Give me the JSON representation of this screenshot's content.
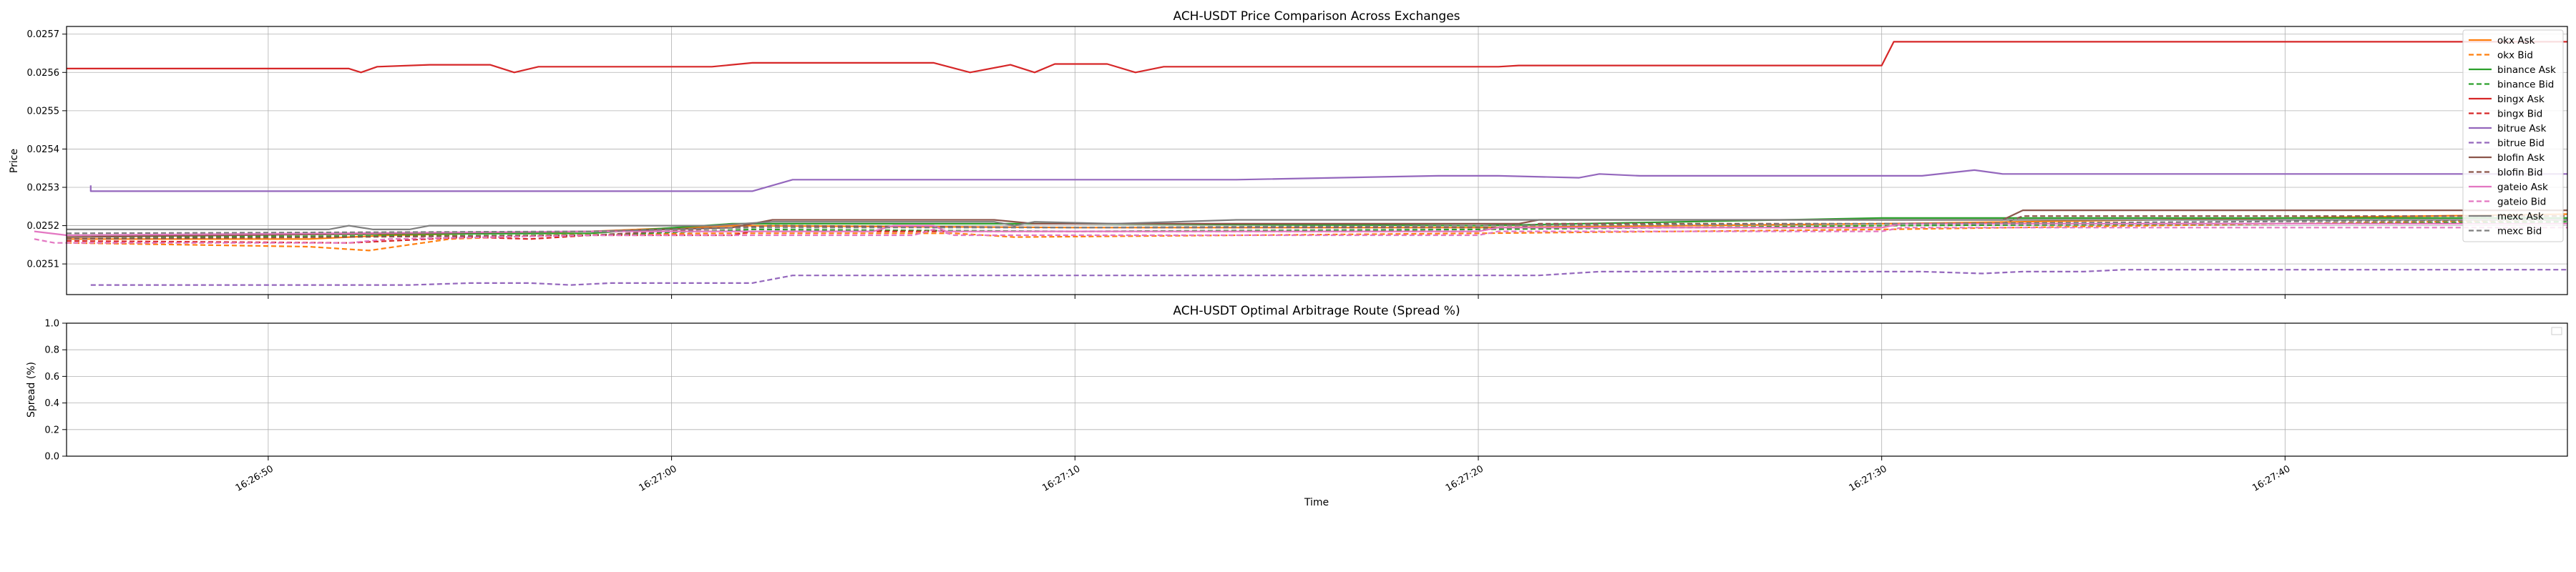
{
  "chart_data": [
    {
      "type": "line",
      "title": "ACH-USDT Price Comparison Across Exchanges",
      "xlabel": "",
      "ylabel": "Price",
      "ylim": [
        0.02502,
        0.02572
      ],
      "xlim": [
        "16:26:45",
        "16:27:47"
      ],
      "grid": true,
      "legend": "right",
      "y_ticks": [
        "0.0251",
        "0.0252",
        "0.0253",
        "0.0254",
        "0.0255",
        "0.0256",
        "0.0257"
      ],
      "y_tick_values": [
        0.0251,
        0.0252,
        0.0253,
        0.0254,
        0.0255,
        0.0256,
        0.0257
      ],
      "x_ticks": [
        "16:26:50",
        "16:27:00",
        "16:27:10",
        "16:27:20",
        "16:27:30",
        "16:27:40"
      ],
      "series": [
        {
          "name": "okx Ask",
          "color": "#ff7f0e",
          "dashed": false,
          "points": [
            [
              "16:26:45.0",
              0.025165
            ],
            [
              "16:26:51.0",
              0.025165
            ],
            [
              "16:26:53.0",
              0.025175
            ],
            [
              "16:26:58.0",
              0.025185
            ],
            [
              "16:27:01.5",
              0.0252
            ],
            [
              "16:27:10.0",
              0.025195
            ],
            [
              "16:27:20.0",
              0.025195
            ],
            [
              "16:27:30.0",
              0.025205
            ],
            [
              "16:27:40.0",
              0.02522
            ],
            [
              "16:27:47.0",
              0.02523
            ]
          ]
        },
        {
          "name": "okx Bid",
          "color": "#ff7f0e",
          "dashed": true,
          "points": [
            [
              "16:26:45.0",
              0.025155
            ],
            [
              "16:26:51.0",
              0.025145
            ],
            [
              "16:26:52.5",
              0.025135
            ],
            [
              "16:26:54.5",
              0.025165
            ],
            [
              "16:26:57.0",
              0.025175
            ],
            [
              "16:27:01.0",
              0.02518
            ],
            [
              "16:27:07.0",
              0.02518
            ],
            [
              "16:27:08.5",
              0.02517
            ],
            [
              "16:27:20.0",
              0.02518
            ],
            [
              "16:27:30.0",
              0.02519
            ],
            [
              "16:27:40.0",
              0.025205
            ],
            [
              "16:27:47.0",
              0.025215
            ]
          ]
        },
        {
          "name": "binance Ask",
          "color": "#2ca02c",
          "dashed": false,
          "points": [
            [
              "16:26:45.0",
              0.025175
            ],
            [
              "16:26:58.0",
              0.02518
            ],
            [
              "16:27:01.5",
              0.025205
            ],
            [
              "16:27:10.0",
              0.025205
            ],
            [
              "16:27:20.0",
              0.0252
            ],
            [
              "16:27:30.0",
              0.02522
            ],
            [
              "16:27:40.0",
              0.02522
            ],
            [
              "16:27:47.0",
              0.02522
            ]
          ]
        },
        {
          "name": "binance Bid",
          "color": "#2ca02c",
          "dashed": true,
          "points": [
            [
              "16:26:45.0",
              0.02517
            ],
            [
              "16:26:58.0",
              0.025175
            ],
            [
              "16:27:02.0",
              0.02519
            ],
            [
              "16:27:10.0",
              0.025185
            ],
            [
              "16:27:20.0",
              0.02519
            ],
            [
              "16:27:30.0",
              0.0252
            ],
            [
              "16:27:40.0",
              0.025205
            ],
            [
              "16:27:47.0",
              0.02521
            ]
          ]
        },
        {
          "name": "bingx Ask",
          "color": "#d62728",
          "dashed": false,
          "points": [
            [
              "16:26:45.0",
              0.02561
            ],
            [
              "16:26:52.0",
              0.02561
            ],
            [
              "16:26:52.3",
              0.0256
            ],
            [
              "16:26:52.7",
              0.025615
            ],
            [
              "16:26:54.0",
              0.02562
            ],
            [
              "16:26:55.5",
              0.02562
            ],
            [
              "16:26:56.1",
              0.0256
            ],
            [
              "16:26:56.7",
              0.025615
            ],
            [
              "16:27:01.0",
              0.025615
            ],
            [
              "16:27:02.0",
              0.025625
            ],
            [
              "16:27:06.5",
              0.025625
            ],
            [
              "16:27:07.4",
              0.0256
            ],
            [
              "16:27:08.4",
              0.02562
            ],
            [
              "16:27:09.0",
              0.0256
            ],
            [
              "16:27:09.5",
              0.025622
            ],
            [
              "16:27:10.8",
              0.025622
            ],
            [
              "16:27:11.5",
              0.0256
            ],
            [
              "16:27:12.2",
              0.025615
            ],
            [
              "16:27:20.5",
              0.025615
            ],
            [
              "16:27:21.0",
              0.025618
            ],
            [
              "16:27:30.0",
              0.025618
            ],
            [
              "16:27:30.3",
              0.02568
            ],
            [
              "16:27:47.0",
              0.02568
            ]
          ]
        },
        {
          "name": "bingx Bid",
          "color": "#d62728",
          "dashed": true,
          "points": [
            [
              "16:26:45.0",
              0.02516
            ],
            [
              "16:26:52.0",
              0.025155
            ],
            [
              "16:26:55.0",
              0.02517
            ],
            [
              "16:26:56.5",
              0.025165
            ],
            [
              "16:26:58.0",
              0.025175
            ],
            [
              "16:27:01.5",
              0.025175
            ],
            [
              "16:27:02.0",
              0.025185
            ],
            [
              "16:27:20.0",
              0.025185
            ],
            [
              "16:27:20.5",
              0.025195
            ],
            [
              "16:27:30.0",
              0.025195
            ],
            [
              "16:27:30.5",
              0.025205
            ],
            [
              "16:27:47.0",
              0.025205
            ]
          ]
        },
        {
          "name": "bitrue Ask",
          "color": "#9467bd",
          "dashed": false,
          "points": [
            [
              "16:26:45.6",
              0.025305
            ],
            [
              "16:26:45.6",
              0.02529
            ],
            [
              "16:27:02.0",
              0.02529
            ],
            [
              "16:27:03.0",
              0.02532
            ],
            [
              "16:27:14.0",
              0.02532
            ],
            [
              "16:27:19.0",
              0.02533
            ],
            [
              "16:27:20.5",
              0.02533
            ],
            [
              "16:27:22.5",
              0.025325
            ],
            [
              "16:27:23.0",
              0.025335
            ],
            [
              "16:27:24.0",
              0.02533
            ],
            [
              "16:27:31.0",
              0.02533
            ],
            [
              "16:27:32.3",
              0.025345
            ],
            [
              "16:27:33.0",
              0.025335
            ],
            [
              "16:27:47.0",
              0.025335
            ]
          ]
        },
        {
          "name": "bitrue Bid",
          "color": "#9467bd",
          "dashed": true,
          "points": [
            [
              "16:26:45.6",
              0.025045
            ],
            [
              "16:26:53.5",
              0.025045
            ],
            [
              "16:26:55.0",
              0.02505
            ],
            [
              "16:26:56.5",
              0.02505
            ],
            [
              "16:26:57.5",
              0.025045
            ],
            [
              "16:26:58.5",
              0.02505
            ],
            [
              "16:27:02.0",
              0.02505
            ],
            [
              "16:27:03.0",
              0.02507
            ],
            [
              "16:27:21.5",
              0.02507
            ],
            [
              "16:27:23.0",
              0.02508
            ],
            [
              "16:27:31.0",
              0.02508
            ],
            [
              "16:27:32.5",
              0.025075
            ],
            [
              "16:27:33.5",
              0.02508
            ],
            [
              "16:27:35.0",
              0.02508
            ],
            [
              "16:27:36.0",
              0.025085
            ],
            [
              "16:27:47.0",
              0.025085
            ]
          ]
        },
        {
          "name": "blofin Ask",
          "color": "#8c564b",
          "dashed": false,
          "points": [
            [
              "16:26:45.0",
              0.02517
            ],
            [
              "16:26:58.0",
              0.025185
            ],
            [
              "16:27:01.5",
              0.025195
            ],
            [
              "16:27:02.5",
              0.025215
            ],
            [
              "16:27:08.0",
              0.025215
            ],
            [
              "16:27:09.0",
              0.025205
            ],
            [
              "16:27:21.0",
              0.025205
            ],
            [
              "16:27:21.5",
              0.025215
            ],
            [
              "16:27:33.0",
              0.025215
            ],
            [
              "16:27:33.5",
              0.02524
            ],
            [
              "16:27:47.0",
              0.02524
            ]
          ]
        },
        {
          "name": "blofin Bid",
          "color": "#8c564b",
          "dashed": true,
          "points": [
            [
              "16:26:45.0",
              0.025165
            ],
            [
              "16:26:58.0",
              0.025175
            ],
            [
              "16:27:02.5",
              0.0252
            ],
            [
              "16:27:10.0",
              0.025195
            ],
            [
              "16:27:21.0",
              0.025195
            ],
            [
              "16:27:21.5",
              0.025205
            ],
            [
              "16:27:33.0",
              0.025205
            ],
            [
              "16:27:33.5",
              0.025225
            ],
            [
              "16:27:47.0",
              0.025225
            ]
          ]
        },
        {
          "name": "gateio Ask",
          "color": "#e377c2",
          "dashed": false,
          "points": [
            [
              "16:26:44.2",
              0.025185
            ],
            [
              "16:26:45.0",
              0.025175
            ],
            [
              "16:26:58.0",
              0.025185
            ],
            [
              "16:27:05.0",
              0.025185
            ],
            [
              "16:27:05.5",
              0.0252
            ],
            [
              "16:27:06.5",
              0.0252
            ],
            [
              "16:27:06.8",
              0.025185
            ],
            [
              "16:27:10.0",
              0.025185
            ],
            [
              "16:27:20.0",
              0.025185
            ],
            [
              "16:27:20.5",
              0.025195
            ],
            [
              "16:27:30.0",
              0.025195
            ],
            [
              "16:27:30.5",
              0.025205
            ],
            [
              "16:27:47.0",
              0.025205
            ]
          ]
        },
        {
          "name": "gateio Bid",
          "color": "#e377c2",
          "dashed": true,
          "points": [
            [
              "16:26:44.2",
              0.025165
            ],
            [
              "16:26:44.7",
              0.025155
            ],
            [
              "16:26:52.0",
              0.025155
            ],
            [
              "16:26:53.0",
              0.025165
            ],
            [
              "16:26:58.0",
              0.025175
            ],
            [
              "16:27:06.0",
              0.025175
            ],
            [
              "16:27:06.5",
              0.02519
            ],
            [
              "16:27:07.0",
              0.025175
            ],
            [
              "16:27:20.0",
              0.025175
            ],
            [
              "16:27:20.5",
              0.025185
            ],
            [
              "16:27:30.0",
              0.025185
            ],
            [
              "16:27:30.5",
              0.025195
            ],
            [
              "16:27:47.0",
              0.025195
            ]
          ]
        },
        {
          "name": "mexc Ask",
          "color": "#7f7f7f",
          "dashed": false,
          "points": [
            [
              "16:26:45.0",
              0.02519
            ],
            [
              "16:26:51.5",
              0.02519
            ],
            [
              "16:26:52.0",
              0.0252
            ],
            [
              "16:26:52.6",
              0.02519
            ],
            [
              "16:26:53.5",
              0.02519
            ],
            [
              "16:26:54.0",
              0.0252
            ],
            [
              "16:26:57.0",
              0.0252
            ],
            [
              "16:27:01.0",
              0.0252
            ],
            [
              "16:27:02.5",
              0.02521
            ],
            [
              "16:27:08.0",
              0.02521
            ],
            [
              "16:27:08.5",
              0.0252
            ],
            [
              "16:27:09.0",
              0.02521
            ],
            [
              "16:27:11.0",
              0.025205
            ],
            [
              "16:27:14.0",
              0.025215
            ],
            [
              "16:27:30.0",
              0.025215
            ],
            [
              "16:27:47.0",
              0.025215
            ]
          ]
        },
        {
          "name": "mexc Bid",
          "color": "#7f7f7f",
          "dashed": true,
          "points": [
            [
              "16:26:45.0",
              0.02518
            ],
            [
              "16:26:58.0",
              0.025185
            ],
            [
              "16:27:02.0",
              0.025195
            ],
            [
              "16:27:10.0",
              0.025195
            ],
            [
              "16:27:20.0",
              0.0252
            ],
            [
              "16:27:30.0",
              0.025205
            ],
            [
              "16:27:47.0",
              0.025215
            ]
          ]
        }
      ]
    },
    {
      "type": "line",
      "title": "ACH-USDT Optimal Arbitrage Route (Spread %)",
      "xlabel": "Time",
      "ylabel": "Spread (%)",
      "ylim": [
        0,
        1
      ],
      "xlim": [
        "16:26:45",
        "16:27:47"
      ],
      "grid": true,
      "y_ticks": [
        "0.0",
        "0.2",
        "0.4",
        "0.6",
        "0.8",
        "1.0"
      ],
      "y_tick_values": [
        0,
        0.2,
        0.4,
        0.6,
        0.8,
        1.0
      ],
      "x_ticks": [
        "16:26:50",
        "16:27:00",
        "16:27:10",
        "16:27:20",
        "16:27:30",
        "16:27:40"
      ],
      "series": []
    }
  ]
}
